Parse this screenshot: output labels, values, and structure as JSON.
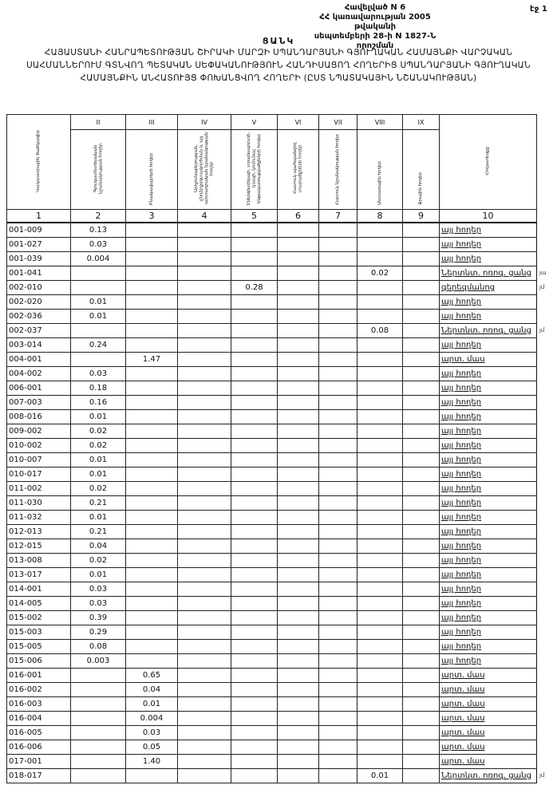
{
  "header": {
    "annex_lines": [
      "Հավելված N 6",
      "ՀՀ կառավարության 2005 թվականի",
      "սեպտեմբերի 28-ի N 1827-Ն որոշման"
    ],
    "page": "էջ 1",
    "list_label": "ՑԱՆԿ",
    "title": "ՀԱՅԱՍՏԱՆԻ ՀԱՆՐԱՊԵՏՈՒԹՅԱՆ ՇԻՐԱԿԻ ՄԱՐԶԻ ՍՊԱՆԴԱՐՅԱՆԻ ԳՅՈՒՂԱԿԱՆ ՀԱՄԱՅՆՔԻ ՎԱՐՉԱԿԱՆ ՍԱՀՄԱՆՆԵՐՈՒՄ ԳՏՆՎՈՂ ՊԵՏԱԿԱՆ ՍԵՓԱԿԱՆՈՒԹՅՈՒՆ ՀԱՆԴԻՍԱՑՈՂ ՀՈՂԵՐԻՑ ՍՊԱՆԴԱՐՅԱՆԻ ԳՅՈՒՂԱԿԱՆ ՀԱՄԱՅՆՔԻՆ ԱՆՀԱՏՈՒՅՑ ՓՈԽԱՆՑՎՈՂ ՀՈՂԵՐԻ (ԸՍՏ ՆՊԱՏԱԿԱՅԻՆ ՆՇԱՆԱԿՈՒԹՅԱՆ)"
  },
  "table": {
    "roman": [
      "",
      "II",
      "III",
      "IV",
      "V",
      "VI",
      "VII",
      "VIII",
      "IX",
      ""
    ],
    "headers": [
      "Կադաստրային ծածկագիր",
      "Գյուղատնտեսական նշանակության հողեր",
      "Բնակավայրերի հողեր",
      "Արդյունաբերության, ընդերքօգտագործման և այլ արտադրական նշանակության հողեր",
      "Էներգետիկայի, տրանսպորտի, կապի, կոմունալ ենթակառուցվածքների հողեր",
      "Հատուկ պահպանվող տարածքների հողեր",
      "Հատուկ նշանակության հողեր",
      "Անտառային հողեր",
      "Ջրային հողեր",
      "Հողատեսքը"
    ],
    "numbers": [
      "1",
      "2",
      "3",
      "4",
      "5",
      "6",
      "7",
      "8",
      "9",
      "10"
    ],
    "rows": [
      {
        "code": "001-009",
        "col": 2,
        "value": "0.13",
        "type": "այլ հողեր"
      },
      {
        "code": "001-027",
        "col": 2,
        "value": "0.03",
        "type": "այլ հողեր"
      },
      {
        "code": "001-039",
        "col": 2,
        "value": "0.004",
        "type": "այլ հողեր"
      },
      {
        "code": "001-041",
        "col": 8,
        "value": "0.02",
        "type": "Ներտնտ. ոռոգ. ցանց",
        "note": "յա"
      },
      {
        "code": "002-010",
        "col": 5,
        "value": "0.28",
        "type": "գերեզմանոց",
        "note": "յմ"
      },
      {
        "code": "002-020",
        "col": 2,
        "value": "0.01",
        "type": "այլ հողեր"
      },
      {
        "code": "002-036",
        "col": 2,
        "value": "0.01",
        "type": "այլ հողեր"
      },
      {
        "code": "002-037",
        "col": 8,
        "value": "0.08",
        "type": "Ներտնտ. ոռոգ. ցանց",
        "note": "յմ"
      },
      {
        "code": "003-014",
        "col": 2,
        "value": "0.24",
        "type": "այլ հողեր"
      },
      {
        "code": "004-001",
        "col": 3,
        "value": "1.47",
        "type": "արտ. մաս"
      },
      {
        "code": "004-002",
        "col": 2,
        "value": "0.03",
        "type": "այլ հողեր"
      },
      {
        "code": "006-001",
        "col": 2,
        "value": "0.18",
        "type": "այլ հողեր"
      },
      {
        "code": "007-003",
        "col": 2,
        "value": "0.16",
        "type": "այլ հողեր"
      },
      {
        "code": "008-016",
        "col": 2,
        "value": "0.01",
        "type": "այլ հողեր"
      },
      {
        "code": "009-002",
        "col": 2,
        "value": "0.02",
        "type": "այլ հողեր"
      },
      {
        "code": "010-002",
        "col": 2,
        "value": "0.02",
        "type": "այլ հողեր"
      },
      {
        "code": "010-007",
        "col": 2,
        "value": "0.01",
        "type": "այլ հողեր"
      },
      {
        "code": "010-017",
        "col": 2,
        "value": "0.01",
        "type": "այլ հողեր"
      },
      {
        "code": "011-002",
        "col": 2,
        "value": "0.02",
        "type": "այլ հողեր"
      },
      {
        "code": "011-030",
        "col": 2,
        "value": "0.21",
        "type": "այլ հողեր"
      },
      {
        "code": "011-032",
        "col": 2,
        "value": "0.01",
        "type": "այլ հողեր"
      },
      {
        "code": "012-013",
        "col": 2,
        "value": "0.21",
        "type": "այլ հողեր"
      },
      {
        "code": "012-015",
        "col": 2,
        "value": "0.04",
        "type": "այլ հողեր"
      },
      {
        "code": "013-008",
        "col": 2,
        "value": "0.02",
        "type": "այլ հողեր"
      },
      {
        "code": "013-017",
        "col": 2,
        "value": "0.01",
        "type": "այլ հողեր"
      },
      {
        "code": "014-001",
        "col": 2,
        "value": "0.03",
        "type": "այլ հողեր"
      },
      {
        "code": "014-005",
        "col": 2,
        "value": "0.03",
        "type": "այլ հողեր"
      },
      {
        "code": "015-002",
        "col": 2,
        "value": "0.39",
        "type": "այլ հողեր"
      },
      {
        "code": "015-003",
        "col": 2,
        "value": "0.29",
        "type": "այլ հողեր"
      },
      {
        "code": "015-005",
        "col": 2,
        "value": "0.08",
        "type": "այլ հողեր"
      },
      {
        "code": "015-006",
        "col": 2,
        "value": "0.003",
        "type": "այլ հողեր"
      },
      {
        "code": "016-001",
        "col": 3,
        "value": "0.65",
        "type": "արտ. մաս"
      },
      {
        "code": "016-002",
        "col": 3,
        "value": "0.04",
        "type": "արտ. մաս"
      },
      {
        "code": "016-003",
        "col": 3,
        "value": "0.01",
        "type": "արտ. մաս"
      },
      {
        "code": "016-004",
        "col": 3,
        "value": "0.004",
        "type": "արտ. մաս"
      },
      {
        "code": "016-005",
        "col": 3,
        "value": "0.03",
        "type": "արտ. մաս"
      },
      {
        "code": "016-006",
        "col": 3,
        "value": "0.05",
        "type": "արտ. մաս"
      },
      {
        "code": "017-001",
        "col": 3,
        "value": "1.40",
        "type": "արտ. մաս"
      },
      {
        "code": "018-017",
        "col": 8,
        "value": "0.01",
        "type": "Ներտնտ. ոռոգ. ցանց",
        "note": "յմ"
      }
    ]
  }
}
